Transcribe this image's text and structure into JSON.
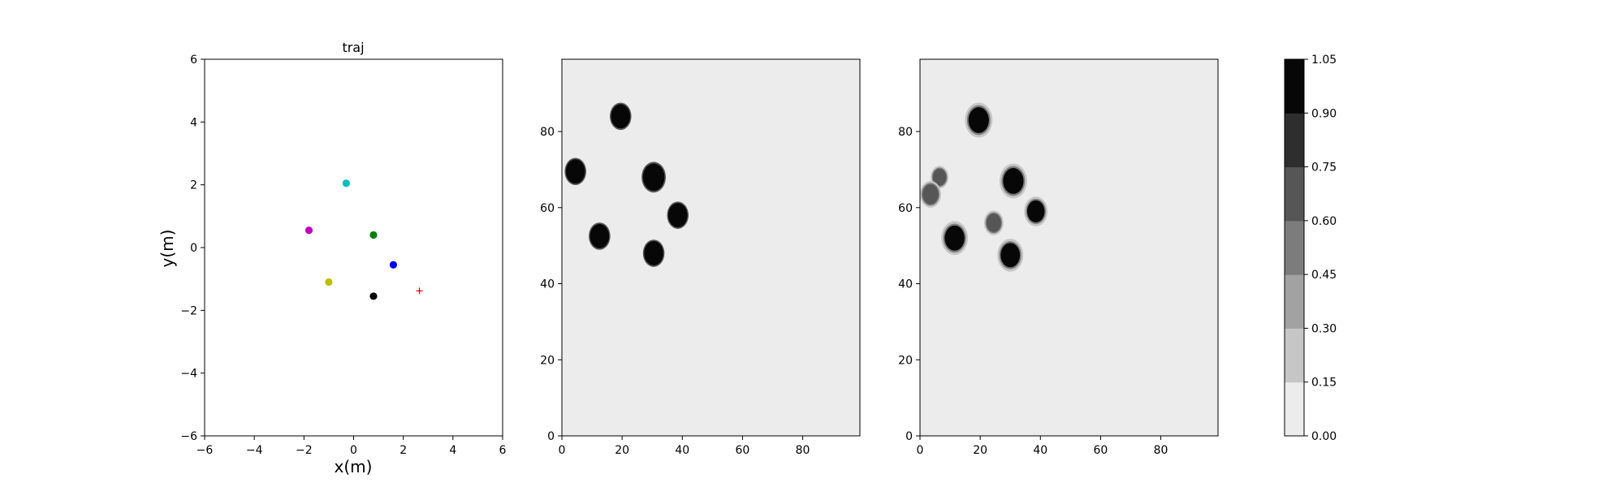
{
  "chart_data": [
    {
      "type": "scatter",
      "title": "traj",
      "xlabel": "x(m)",
      "ylabel": "y(m)",
      "xlim": [
        -6,
        6
      ],
      "ylim": [
        -6,
        6
      ],
      "xticks": [
        -6,
        -4,
        -2,
        0,
        2,
        4,
        6
      ],
      "yticks": [
        -6,
        -4,
        -2,
        0,
        2,
        4,
        6
      ],
      "grid": false,
      "points": [
        {
          "x": -0.3,
          "y": 2.05,
          "color": "#00bfbf",
          "marker": "dot"
        },
        {
          "x": -1.8,
          "y": 0.55,
          "color": "#bf00bf",
          "marker": "dot"
        },
        {
          "x": 0.8,
          "y": 0.4,
          "color": "#008000",
          "marker": "dot"
        },
        {
          "x": 1.6,
          "y": -0.55,
          "color": "#0000ff",
          "marker": "dot"
        },
        {
          "x": -1.0,
          "y": -1.1,
          "color": "#bfbf00",
          "marker": "dot"
        },
        {
          "x": 0.8,
          "y": -1.55,
          "color": "#000000",
          "marker": "dot"
        },
        {
          "x": 2.65,
          "y": -1.38,
          "color": "#ff0000",
          "marker": "plus"
        }
      ]
    },
    {
      "type": "heatmap",
      "title": "",
      "xlim": [
        0,
        99
      ],
      "ylim": [
        0,
        99
      ],
      "xticks": [
        0,
        20,
        40,
        60,
        80
      ],
      "yticks": [
        0,
        20,
        40,
        60,
        80
      ],
      "background_level": 0.07,
      "blobs": [
        {
          "x": 19.5,
          "y": 84,
          "r": 3.2
        },
        {
          "x": 4.5,
          "y": 69.5,
          "r": 3.2
        },
        {
          "x": 30.5,
          "y": 68,
          "r": 3.6
        },
        {
          "x": 38.5,
          "y": 58,
          "r": 3.2
        },
        {
          "x": 12.5,
          "y": 52.5,
          "r": 3.2
        },
        {
          "x": 30.5,
          "y": 48,
          "r": 3.2
        }
      ]
    },
    {
      "type": "heatmap",
      "title": "",
      "xlim": [
        0,
        99
      ],
      "ylim": [
        0,
        99
      ],
      "xticks": [
        0,
        20,
        40,
        60,
        80
      ],
      "yticks": [
        0,
        20,
        40,
        60,
        80
      ],
      "background_level": 0.07,
      "blobs": [
        {
          "x": 19.5,
          "y": 83,
          "r": 3.4
        },
        {
          "x": 31,
          "y": 67,
          "r": 3.4
        },
        {
          "x": 38.5,
          "y": 59,
          "r": 2.9
        },
        {
          "x": 24.5,
          "y": 56,
          "r": 2.4
        },
        {
          "x": 11.5,
          "y": 52,
          "r": 3.3
        },
        {
          "x": 30,
          "y": 47.5,
          "r": 3.2
        },
        {
          "x": 6.5,
          "y": 68,
          "r": 2.2
        },
        {
          "x": 3.5,
          "y": 63.5,
          "r": 2.6
        }
      ]
    }
  ],
  "colorbar": {
    "ticks": [
      "0.00",
      "0.15",
      "0.30",
      "0.45",
      "0.60",
      "0.75",
      "0.90",
      "1.05"
    ],
    "levels": [
      0.0,
      0.15,
      0.3,
      0.45,
      0.6,
      0.75,
      0.9,
      1.05
    ],
    "colors": [
      "#ececec",
      "#c6c6c6",
      "#a2a2a2",
      "#7c7c7c",
      "#565656",
      "#2e2e2e",
      "#070707"
    ]
  }
}
